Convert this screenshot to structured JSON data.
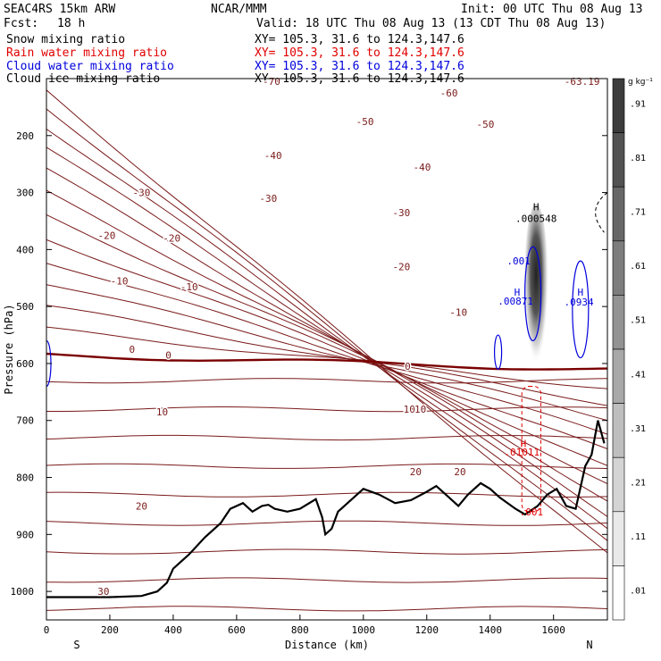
{
  "header": {
    "model": "SEAC4RS 15km ARW",
    "org": "NCAR/MMM",
    "init": "Init: 00 UTC Thu 08 Aug 13",
    "fcst_label": "Fcst:",
    "fcst_value": "18 h",
    "valid": "Valid: 18 UTC Thu 08 Aug 13 (13 CDT Thu 08 Aug 13)"
  },
  "fields": [
    {
      "label": "Snow mixing ratio",
      "xy": "XY= 105.3, 31.6 to 124.3,147.6",
      "color": "#000000"
    },
    {
      "label": "Rain water mixing ratio",
      "xy": "XY= 105.3, 31.6 to 124.3,147.6",
      "color": "#e00000"
    },
    {
      "label": "Cloud water mixing ratio",
      "xy": "XY= 105.3, 31.6 to 124.3,147.6",
      "color": "#0000dd"
    },
    {
      "label": "Cloud ice mixing ratio",
      "xy": "XY= 105.3, 31.6 to 124.3,147.6",
      "color": "#000000"
    }
  ],
  "chart_data": {
    "type": "contour",
    "xlabel": "Distance (km)",
    "ylabel": "Pressure (hPa)",
    "xlim": [
      0,
      1770
    ],
    "ylim": [
      1050,
      100
    ],
    "xticks": [
      0,
      200,
      400,
      600,
      800,
      1000,
      1200,
      1400,
      1600
    ],
    "yticks": [
      200,
      300,
      400,
      500,
      600,
      700,
      800,
      900,
      1000
    ],
    "x_end_labels": {
      "left": "S",
      "right": "N"
    },
    "temperature_isotherms_C": {
      "color": "#7a1a1a",
      "zero_line_color": "#7a0000",
      "labels": [
        {
          "x": 710,
          "p": 105,
          "text": "-70"
        },
        {
          "x": 1270,
          "p": 125,
          "text": "-60"
        },
        {
          "x": 1005,
          "p": 175,
          "text": "-50"
        },
        {
          "x": 1385,
          "p": 180,
          "text": "-50"
        },
        {
          "x": 715,
          "p": 235,
          "text": "-40"
        },
        {
          "x": 1185,
          "p": 255,
          "text": "-40"
        },
        {
          "x": 300,
          "p": 300,
          "text": "-30"
        },
        {
          "x": 700,
          "p": 310,
          "text": "-30"
        },
        {
          "x": 1120,
          "p": 335,
          "text": "-30"
        },
        {
          "x": 190,
          "p": 375,
          "text": "-20"
        },
        {
          "x": 395,
          "p": 380,
          "text": "-20"
        },
        {
          "x": 1120,
          "p": 430,
          "text": "-20"
        },
        {
          "x": 230,
          "p": 455,
          "text": "-10"
        },
        {
          "x": 450,
          "p": 465,
          "text": "-10"
        },
        {
          "x": 1300,
          "p": 510,
          "text": "-10"
        },
        {
          "x": 270,
          "p": 575,
          "text": "0"
        },
        {
          "x": 385,
          "p": 585,
          "text": "0"
        },
        {
          "x": 1140,
          "p": 605,
          "text": "0"
        },
        {
          "x": 365,
          "p": 685,
          "text": "10"
        },
        {
          "x": 1145,
          "p": 680,
          "text": "10"
        },
        {
          "x": 1180,
          "p": 680,
          "text": "10"
        },
        {
          "x": 1165,
          "p": 790,
          "text": "20"
        },
        {
          "x": 1305,
          "p": 790,
          "text": "20"
        },
        {
          "x": 300,
          "p": 850,
          "text": "20"
        },
        {
          "x": 180,
          "p": 1000,
          "text": "30"
        },
        {
          "x": 1690,
          "p": 105,
          "text": "-63.19"
        }
      ]
    },
    "annotations": [
      {
        "x": 1545,
        "p": 325,
        "text": "H",
        "color": "#000000"
      },
      {
        "x": 1545,
        "p": 345,
        "text": ".000548",
        "color": "#000000"
      },
      {
        "x": 1490,
        "p": 420,
        "text": ".001",
        "color": "#0000dd"
      },
      {
        "x": 1485,
        "p": 475,
        "text": "H",
        "color": "#0000dd"
      },
      {
        "x": 1480,
        "p": 490,
        "text": ".00871",
        "color": "#0000dd"
      },
      {
        "x": 1685,
        "p": 475,
        "text": "H",
        "color": "#0000dd"
      },
      {
        "x": 1680,
        "p": 492,
        "text": ".0934",
        "color": "#0000dd"
      },
      {
        "x": 1505,
        "p": 740,
        "text": "H",
        "color": "#e00000"
      },
      {
        "x": 1500,
        "p": 755,
        "text": ".01011",
        "color": "#e00000"
      },
      {
        "x": 1530,
        "p": 860,
        "text": ".001",
        "color": "#e00000"
      }
    ],
    "terrain_surface_hPa": {
      "x": [
        0,
        200,
        300,
        350,
        380,
        400,
        450,
        500,
        550,
        580,
        620,
        650,
        680,
        700,
        720,
        760,
        800,
        850,
        870,
        880,
        900,
        920,
        950,
        1000,
        1050,
        1100,
        1150,
        1200,
        1230,
        1260,
        1300,
        1330,
        1370,
        1400,
        1430,
        1480,
        1510,
        1550,
        1580,
        1610,
        1640,
        1670,
        1700,
        1720,
        1740,
        1760
      ],
      "p": [
        1010,
        1010,
        1008,
        1000,
        985,
        960,
        935,
        905,
        880,
        855,
        845,
        860,
        850,
        848,
        855,
        860,
        855,
        838,
        870,
        900,
        890,
        860,
        845,
        820,
        830,
        845,
        840,
        825,
        815,
        830,
        850,
        830,
        810,
        820,
        835,
        855,
        865,
        850,
        830,
        820,
        850,
        855,
        780,
        760,
        700,
        740
      ]
    },
    "cloud_ice_shading": {
      "x": 1545,
      "p_top": 320,
      "p_bottom": 630,
      "max_g_kg": 0.000548
    },
    "colorbar": {
      "units": "g kg⁻¹",
      "labels": [
        ".91",
        ".81",
        ".71",
        ".61",
        ".51",
        ".41",
        ".31",
        ".21",
        ".11",
        ".01"
      ]
    }
  }
}
